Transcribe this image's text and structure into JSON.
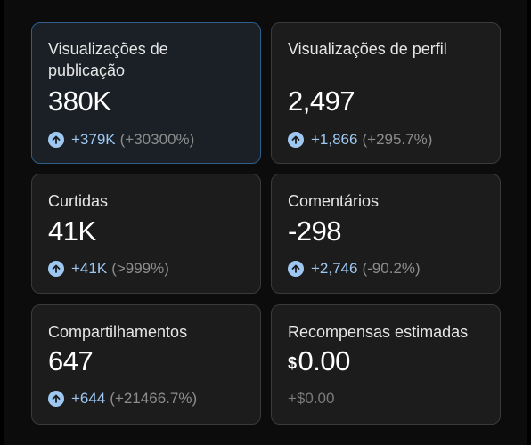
{
  "cards": [
    {
      "label": "Visualizações de publicação",
      "label_line1": "Visualizações de",
      "label_line2": "publicação",
      "value": "380K",
      "delta": "+379K",
      "percent": "(+30300%)"
    },
    {
      "label": "Visualizações de perfil",
      "value": "2,497",
      "delta": "+1,866",
      "percent": "(+295.7%)"
    },
    {
      "label": "Curtidas",
      "value": "41K",
      "delta": "+41K",
      "percent": "(>999%)"
    },
    {
      "label": "Comentários",
      "value": "-298",
      "delta": "+2,746",
      "percent": "(-90.2%)"
    },
    {
      "label": "Compartilhamentos",
      "value": "647",
      "delta": "+644",
      "percent": "(+21466.7%)"
    },
    {
      "label": "Recompensas estimadas",
      "currency": "$",
      "value": "0.00",
      "delta": "+$0.00"
    }
  ],
  "colors": {
    "accent": "#9ec8f2",
    "selected_border": "#2f5f8a"
  },
  "icons": {
    "increase": "arrow-up-circle-icon"
  }
}
